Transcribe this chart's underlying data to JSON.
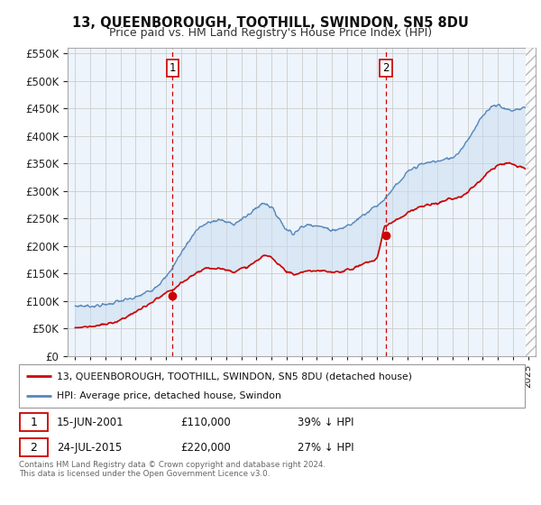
{
  "title": "13, QUEENBOROUGH, TOOTHILL, SWINDON, SN5 8DU",
  "subtitle": "Price paid vs. HM Land Registry's House Price Index (HPI)",
  "background_color": "#ffffff",
  "plot_bg_color": "#eef4fb",
  "grid_color": "#cccccc",
  "ylim": [
    0,
    560000
  ],
  "yticks": [
    0,
    50000,
    100000,
    150000,
    200000,
    250000,
    300000,
    350000,
    400000,
    450000,
    500000,
    550000
  ],
  "xlim_start": 1994.5,
  "xlim_end": 2025.5,
  "sale1_x": 2001.45,
  "sale1_y": 110000,
  "sale2_x": 2015.58,
  "sale2_y": 220000,
  "line_color_red": "#cc0000",
  "line_color_blue": "#5588bb",
  "dashed_color": "#cc0000",
  "fill_color": "#c8dcf0",
  "legend_label_red": "13, QUEENBOROUGH, TOOTHILL, SWINDON, SN5 8DU (detached house)",
  "legend_label_blue": "HPI: Average price, detached house, Swindon",
  "sale1_date": "15-JUN-2001",
  "sale1_price": "£110,000",
  "sale1_hpi": "39% ↓ HPI",
  "sale2_date": "24-JUL-2015",
  "sale2_price": "£220,000",
  "sale2_hpi": "27% ↓ HPI",
  "footer": "Contains HM Land Registry data © Crown copyright and database right 2024.\nThis data is licensed under the Open Government Licence v3.0.",
  "hpi_points": [
    [
      1995.0,
      90000
    ],
    [
      1995.5,
      91000
    ],
    [
      1996.0,
      92000
    ],
    [
      1996.5,
      93500
    ],
    [
      1997.0,
      96000
    ],
    [
      1997.5,
      99000
    ],
    [
      1998.0,
      102000
    ],
    [
      1998.5,
      105000
    ],
    [
      1999.0,
      109000
    ],
    [
      1999.5,
      115000
    ],
    [
      2000.0,
      122000
    ],
    [
      2000.5,
      133000
    ],
    [
      2001.0,
      145000
    ],
    [
      2001.5,
      165000
    ],
    [
      2002.0,
      188000
    ],
    [
      2002.5,
      210000
    ],
    [
      2003.0,
      228000
    ],
    [
      2003.5,
      238000
    ],
    [
      2004.0,
      244000
    ],
    [
      2004.5,
      248000
    ],
    [
      2005.0,
      244000
    ],
    [
      2005.5,
      242000
    ],
    [
      2006.0,
      248000
    ],
    [
      2006.5,
      258000
    ],
    [
      2007.0,
      268000
    ],
    [
      2007.5,
      278000
    ],
    [
      2008.0,
      270000
    ],
    [
      2008.5,
      250000
    ],
    [
      2009.0,
      228000
    ],
    [
      2009.5,
      222000
    ],
    [
      2010.0,
      232000
    ],
    [
      2010.5,
      238000
    ],
    [
      2011.0,
      235000
    ],
    [
      2011.5,
      230000
    ],
    [
      2012.0,
      228000
    ],
    [
      2012.5,
      230000
    ],
    [
      2013.0,
      235000
    ],
    [
      2013.5,
      242000
    ],
    [
      2014.0,
      255000
    ],
    [
      2014.5,
      265000
    ],
    [
      2015.0,
      275000
    ],
    [
      2015.5,
      288000
    ],
    [
      2016.0,
      305000
    ],
    [
      2016.5,
      318000
    ],
    [
      2017.0,
      335000
    ],
    [
      2017.5,
      345000
    ],
    [
      2018.0,
      350000
    ],
    [
      2018.5,
      352000
    ],
    [
      2019.0,
      355000
    ],
    [
      2019.5,
      358000
    ],
    [
      2020.0,
      362000
    ],
    [
      2020.5,
      375000
    ],
    [
      2021.0,
      395000
    ],
    [
      2021.5,
      415000
    ],
    [
      2022.0,
      440000
    ],
    [
      2022.5,
      455000
    ],
    [
      2023.0,
      460000
    ],
    [
      2023.5,
      452000
    ],
    [
      2024.0,
      448000
    ],
    [
      2024.5,
      452000
    ],
    [
      2025.0,
      455000
    ]
  ],
  "prop_points": [
    [
      1995.0,
      52000
    ],
    [
      1995.5,
      52500
    ],
    [
      1996.0,
      53000
    ],
    [
      1996.5,
      54000
    ],
    [
      1997.0,
      56000
    ],
    [
      1997.5,
      59000
    ],
    [
      1998.0,
      63000
    ],
    [
      1998.5,
      68000
    ],
    [
      1999.0,
      74000
    ],
    [
      1999.5,
      81000
    ],
    [
      2000.0,
      89000
    ],
    [
      2000.5,
      99000
    ],
    [
      2001.0,
      107000
    ],
    [
      2001.5,
      113000
    ],
    [
      2002.0,
      125000
    ],
    [
      2002.5,
      135000
    ],
    [
      2003.0,
      143000
    ],
    [
      2003.5,
      148000
    ],
    [
      2004.0,
      151000
    ],
    [
      2004.5,
      150000
    ],
    [
      2005.0,
      147000
    ],
    [
      2005.5,
      145000
    ],
    [
      2006.0,
      148000
    ],
    [
      2006.5,
      153000
    ],
    [
      2007.0,
      161000
    ],
    [
      2007.5,
      170000
    ],
    [
      2008.0,
      166000
    ],
    [
      2008.5,
      155000
    ],
    [
      2009.0,
      140000
    ],
    [
      2009.5,
      135000
    ],
    [
      2010.0,
      140000
    ],
    [
      2010.5,
      143000
    ],
    [
      2011.0,
      142000
    ],
    [
      2011.5,
      140000
    ],
    [
      2012.0,
      139000
    ],
    [
      2012.5,
      140000
    ],
    [
      2013.0,
      143000
    ],
    [
      2013.5,
      147000
    ],
    [
      2014.0,
      153000
    ],
    [
      2014.5,
      158000
    ],
    [
      2015.0,
      163000
    ],
    [
      2015.5,
      222000
    ],
    [
      2016.0,
      232000
    ],
    [
      2016.5,
      240000
    ],
    [
      2017.0,
      248000
    ],
    [
      2017.5,
      254000
    ],
    [
      2018.0,
      258000
    ],
    [
      2018.5,
      260000
    ],
    [
      2019.0,
      263000
    ],
    [
      2019.5,
      266000
    ],
    [
      2020.0,
      268000
    ],
    [
      2020.5,
      272000
    ],
    [
      2021.0,
      280000
    ],
    [
      2021.5,
      292000
    ],
    [
      2022.0,
      305000
    ],
    [
      2022.5,
      318000
    ],
    [
      2023.0,
      328000
    ],
    [
      2023.5,
      332000
    ],
    [
      2024.0,
      330000
    ],
    [
      2024.5,
      325000
    ],
    [
      2025.0,
      325000
    ]
  ]
}
